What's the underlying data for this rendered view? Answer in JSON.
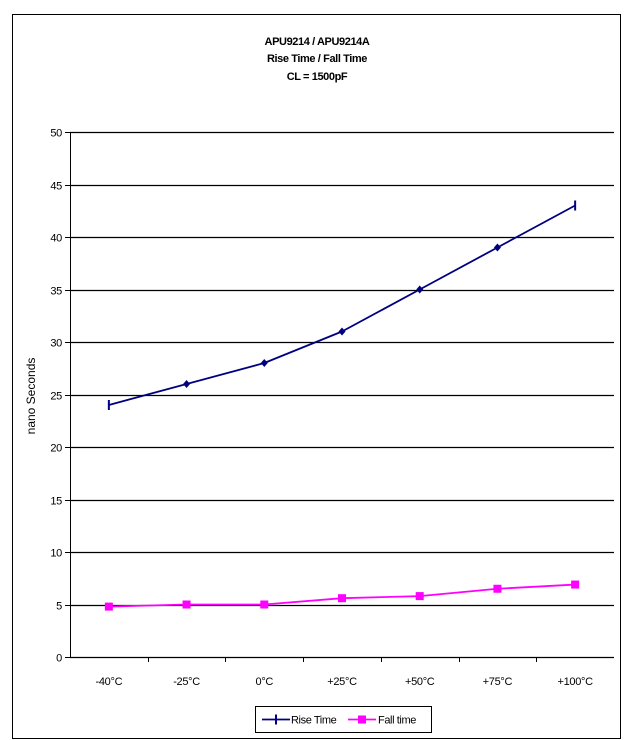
{
  "chart_data": {
    "type": "line",
    "title": [
      "APU9214 / APU9214A",
      "Rise Time / Fall Time",
      "CL = 1500pF"
    ],
    "xlabel": "",
    "ylabel": "nano Seconds",
    "categories": [
      "-40°C",
      "-25°C",
      "0°C",
      "+25°C",
      "+50°C",
      "+75°C",
      "+100°C"
    ],
    "ylim": [
      0,
      50
    ],
    "yticks": [
      "0",
      "5",
      "10",
      "15",
      "20",
      "25",
      "30",
      "35",
      "40",
      "45",
      "50"
    ],
    "grid": "horizontal",
    "legend_position": "bottom",
    "series": [
      {
        "name": "Rise Time",
        "color": "#000080",
        "marker": "diamond",
        "values": [
          24,
          26,
          28,
          31,
          35,
          39,
          43
        ]
      },
      {
        "name": "Fall time",
        "color": "#ff00ff",
        "marker": "square",
        "values": [
          4.8,
          5.0,
          5.0,
          5.6,
          5.8,
          6.5,
          6.9
        ]
      }
    ]
  }
}
